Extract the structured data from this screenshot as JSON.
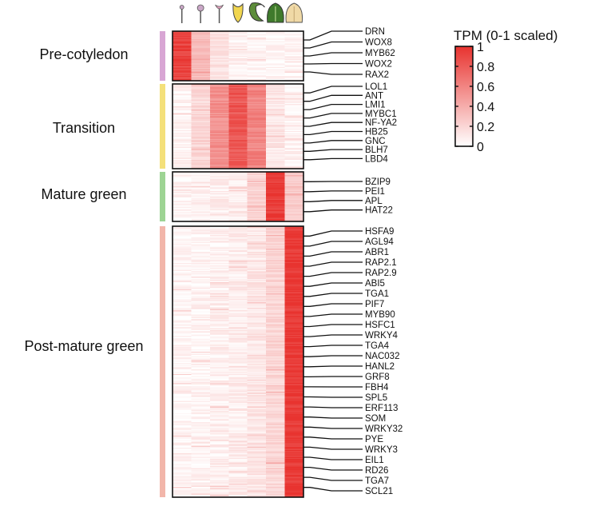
{
  "chart_data": {
    "type": "heatmap",
    "title": "",
    "value_scale": "TPM (0-1 scaled)",
    "color_low": "#ffffff",
    "color_high": "#e8332f",
    "stage_icons": [
      "proembryo-icon",
      "globular-icon",
      "heart-icon",
      "torpedo-icon",
      "bent-cotyledon-icon",
      "mature-green-icon",
      "post-mature-green-icon"
    ],
    "stage_count": 7,
    "clusters": [
      {
        "name": "Pre-cotyledon",
        "color": "#d8a6d4",
        "profile": [
          0.92,
          0.32,
          0.14,
          0.06,
          0.05,
          0.04,
          0.05
        ],
        "genes": [
          "DRN",
          "WOX8",
          "MYB62",
          "WOX2",
          "RAX2"
        ]
      },
      {
        "name": "Transition",
        "color": "#f4e07a",
        "profile": [
          0.06,
          0.2,
          0.55,
          0.82,
          0.6,
          0.12,
          0.06
        ],
        "genes": [
          "LOL1",
          "ANT",
          "LMI1",
          "MYBC1",
          "NF-YA2",
          "HB25",
          "GNC",
          "BLH7",
          "LBD4"
        ]
      },
      {
        "name": "Mature green",
        "color": "#9dd494",
        "profile": [
          0.05,
          0.06,
          0.08,
          0.1,
          0.22,
          0.96,
          0.25
        ],
        "genes": [
          "BZIP9",
          "PEI1",
          "APL",
          "HAT22"
        ]
      },
      {
        "name": "Post-mature green",
        "color": "#f2b6aa",
        "profile": [
          0.04,
          0.05,
          0.07,
          0.09,
          0.12,
          0.2,
          0.97
        ],
        "genes": [
          "HSFA9",
          "AGL94",
          "ABR1",
          "RAP2.1",
          "RAP2.9",
          "ABI5",
          "TGA1",
          "PIF7",
          "MYB90",
          "HSFC1",
          "WRKY4",
          "TGA4",
          "NAC032",
          "HANL2",
          "GRF8",
          "FBH4",
          "SPL5",
          "ERF113",
          "SOM",
          "WRKY32",
          "PYE",
          "WRKY3",
          "EIL1",
          "RD26",
          "TGA7",
          "SCL21"
        ]
      }
    ],
    "legend": {
      "title": "TPM (0-1 scaled)",
      "ticks": [
        "1",
        "0.8",
        "0.6",
        "0.4",
        "0.2",
        "0"
      ],
      "range": [
        0,
        1
      ]
    }
  }
}
